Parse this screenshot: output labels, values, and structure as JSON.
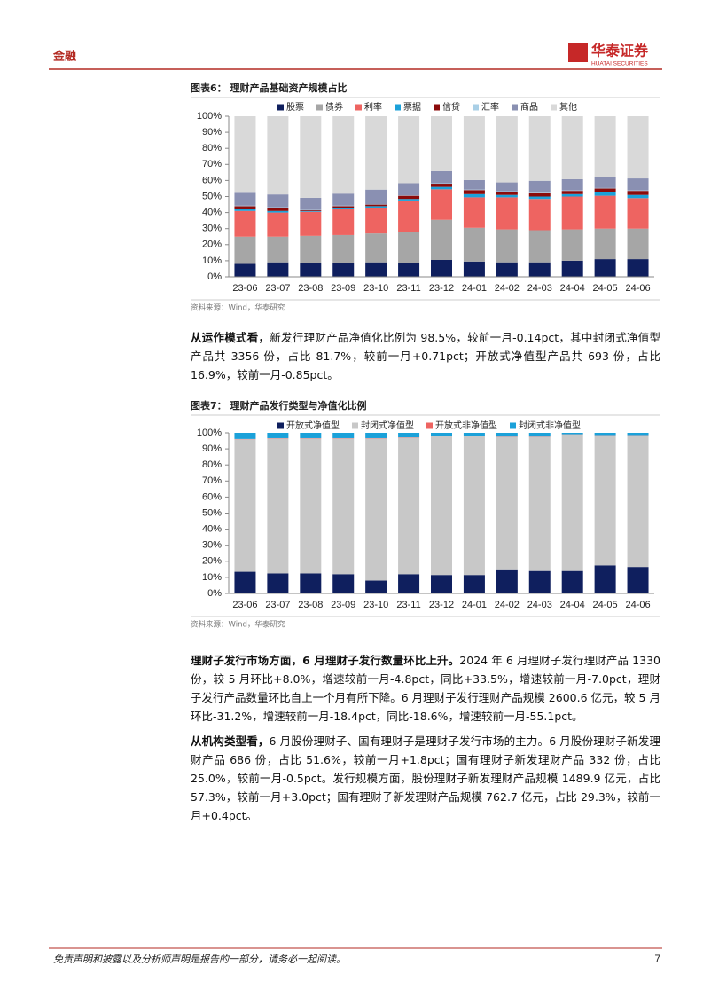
{
  "header": {
    "section": "金融",
    "logo": "华泰证券",
    "logo_en": "HUATAI SECURITIES"
  },
  "chart_data": [
    {
      "type": "stacked_bar",
      "title": "图表6：  理财产品基础资产规模占比",
      "source": "资料来源：Wind，华泰研究",
      "categories": [
        "23-06",
        "23-07",
        "23-08",
        "23-09",
        "23-10",
        "23-11",
        "23-12",
        "24-01",
        "24-02",
        "24-03",
        "24-04",
        "24-05",
        "24-06"
      ],
      "series": [
        {
          "name": "股票",
          "color": "#0f1f5e",
          "values": [
            8,
            9,
            8.5,
            8.5,
            9,
            8.5,
            10.5,
            9.5,
            9,
            9,
            10,
            11,
            11
          ]
        },
        {
          "name": "债券",
          "color": "#a6a6a6",
          "values": [
            17,
            16,
            17,
            17.5,
            18,
            19.5,
            25,
            21,
            20.5,
            20,
            19.5,
            19,
            19
          ]
        },
        {
          "name": "利率",
          "color": "#ee6461",
          "values": [
            16,
            15,
            15,
            16,
            16,
            19,
            19,
            19,
            20,
            19.5,
            20.5,
            20.5,
            19
          ]
        },
        {
          "name": "票据",
          "color": "#1ba1d9",
          "values": [
            1,
            1,
            0.5,
            1,
            1,
            1.5,
            1.5,
            2,
            1.5,
            1.5,
            1.5,
            2,
            2
          ]
        },
        {
          "name": "信贷",
          "color": "#8b0a0a",
          "values": [
            2,
            2,
            0.5,
            1,
            1,
            2,
            2,
            2.5,
            2,
            2,
            2,
            2.5,
            2.5
          ]
        },
        {
          "name": "汇率",
          "color": "#a9cfe6",
          "values": [
            0.3,
            0.3,
            0.2,
            0.3,
            0.3,
            0.3,
            0.3,
            0.3,
            0.3,
            0.3,
            0.3,
            0.3,
            0.3
          ]
        },
        {
          "name": "商品",
          "color": "#8a90b2",
          "values": [
            8,
            8,
            7.5,
            7.5,
            9,
            7.5,
            7.5,
            6,
            5.5,
            7.5,
            7,
            7,
            7.5
          ]
        },
        {
          "name": "其他",
          "color": "#d9d9d9",
          "values": [
            47.7,
            48.7,
            50.8,
            48.2,
            45.7,
            41.7,
            34.2,
            39.7,
            41.2,
            40.2,
            39.2,
            37.7,
            38.7
          ]
        }
      ],
      "ylim": [
        0,
        100
      ],
      "yticks": [
        {
          "value": 0,
          "label": "0%"
        },
        {
          "value": 10,
          "label": "10%"
        },
        {
          "value": 20,
          "label": "20%"
        },
        {
          "value": 30,
          "label": "30%"
        },
        {
          "value": 40,
          "label": "40%"
        },
        {
          "value": 50,
          "label": "50%"
        },
        {
          "value": 60,
          "label": "60%"
        },
        {
          "value": 70,
          "label": "70%"
        },
        {
          "value": 80,
          "label": "80%"
        },
        {
          "value": 90,
          "label": "90%"
        },
        {
          "value": 100,
          "label": "100%"
        }
      ],
      "legend": "top"
    },
    {
      "type": "stacked_bar",
      "title": "图表7：  理财产品发行类型与净值化比例",
      "source": "资料来源：Wind，华泰研究",
      "categories": [
        "23-06",
        "23-07",
        "23-08",
        "23-09",
        "23-10",
        "23-11",
        "23-12",
        "24-01",
        "24-02",
        "24-03",
        "24-04",
        "24-05",
        "24-06"
      ],
      "series": [
        {
          "name": "开放式净值型",
          "color": "#0f1f5e",
          "values": [
            13.5,
            12.5,
            12.5,
            12,
            8,
            12,
            11.5,
            11.5,
            14.5,
            14,
            14,
            17.5,
            16.5
          ]
        },
        {
          "name": "封闭式净值型",
          "color": "#c8c8c8",
          "values": [
            82.5,
            84,
            84,
            84.5,
            88.5,
            85,
            86.5,
            86.5,
            83,
            83.5,
            85,
            81,
            82
          ]
        },
        {
          "name": "开放式非净值型",
          "color": "#ee6461",
          "values": [
            0.2,
            0.2,
            0.2,
            0.2,
            0.2,
            0.2,
            0.1,
            0.1,
            0.2,
            0.2,
            0.1,
            0.1,
            0.1
          ]
        },
        {
          "name": "封闭式非净值型",
          "color": "#1ba1d9",
          "values": [
            3.8,
            3.3,
            3.3,
            3.3,
            3.3,
            2.8,
            1.9,
            1.9,
            2.3,
            2.3,
            0.9,
            1.4,
            1.4
          ]
        }
      ],
      "ylim": [
        0,
        100
      ],
      "yticks": [
        {
          "value": 0,
          "label": "0%"
        },
        {
          "value": 10,
          "label": "10%"
        },
        {
          "value": 20,
          "label": "20%"
        },
        {
          "value": 30,
          "label": "30%"
        },
        {
          "value": 40,
          "label": "40%"
        },
        {
          "value": 50,
          "label": "50%"
        },
        {
          "value": 60,
          "label": "60%"
        },
        {
          "value": 70,
          "label": "70%"
        },
        {
          "value": 80,
          "label": "80%"
        },
        {
          "value": 90,
          "label": "90%"
        },
        {
          "value": 100,
          "label": "100%"
        }
      ],
      "legend": "top"
    }
  ],
  "paragraphs": [
    {
      "bold": "从运作模式看，",
      "text": "新发行理财产品净值化比例为 98.5%，较前一月-0.14pct，其中封闭式净值型产品共 3356 份，占比 81.7%，较前一月+0.71pct；开放式净值型产品共 693 份，占比 16.9%，较前一月-0.85pct。"
    },
    {
      "bold": "理财子发行市场方面，6 月理财子发行数量环比上升。",
      "text": "2024 年 6 月理财子发行理财产品 1330 份，较 5 月环比+8.0%，增速较前一月-4.8pct，同比+33.5%，增速较前一月-7.0pct，理财子发行产品数量环比自上一个月有所下降。6 月理财子发行理财产品规模 2600.6 亿元，较 5 月环比-31.2%，增速较前一月-18.4pct，同比-18.6%，增速较前一月-55.1pct。"
    },
    {
      "bold": "从机构类型看，",
      "text": "6 月股份理财子、国有理财子是理财子发行市场的主力。6 月股份理财子新发理财产品 686 份，占比 51.6%，较前一月+1.8pct；国有理财子新发理财产品 332 份，占比 25.0%，较前一月-0.5pct。发行规模方面，股份理财子新发理财产品规模 1489.9 亿元，占比 57.3%，较前一月+3.0pct；国有理财子新发理财产品规模 762.7 亿元，占比 29.3%，较前一月+0.4pct。"
    }
  ],
  "footer": {
    "disclaimer": "免责声明和披露以及分析师声明是报告的一部分，请务必一起阅读。",
    "page": "7"
  }
}
